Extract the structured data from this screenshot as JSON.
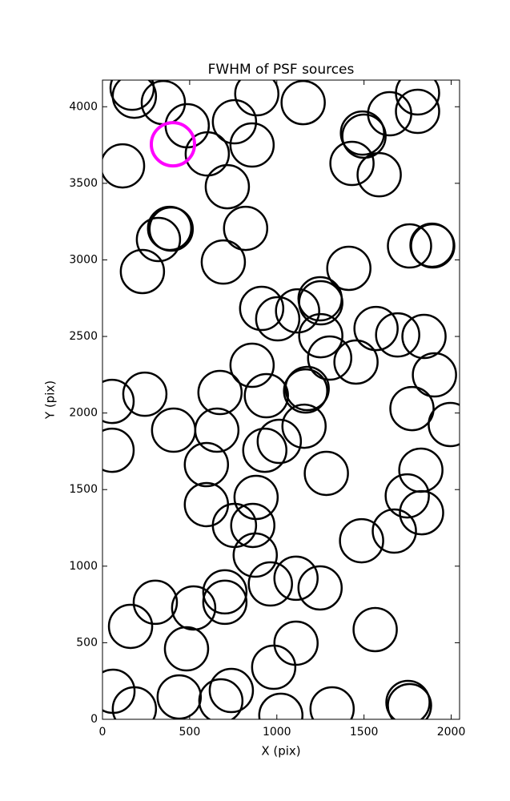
{
  "chart_data": {
    "type": "scatter",
    "title": "FWHM of PSF sources",
    "x_label": "X (pix)",
    "y_label": "Y (pix)",
    "xlim": [
      0,
      2048
    ],
    "ylim": [
      0,
      4174
    ],
    "xticks": [
      0,
      500,
      1000,
      1500,
      2000
    ],
    "yticks": [
      0,
      500,
      1000,
      1500,
      2000,
      2500,
      3000,
      3500,
      4000
    ],
    "series": [
      {
        "color": "#000000",
        "x": [
          170,
          183,
          349,
          486,
          115,
          601,
          757,
          858,
          885,
          716,
          1151,
          1491,
          1500,
          1431,
          1587,
          1647,
          1807,
          1807,
          394,
          385,
          321,
          821,
          693,
          229,
          1413,
          1761,
          1894,
          1890,
          913,
          1005,
          1119,
          1248,
          1252,
          1252,
          1303,
          1454,
          1569,
          1693,
          1844,
          1904,
          1775,
          1995,
          55,
          243,
          858,
          674,
          940,
          1165,
          1174,
          1156,
          656,
          408,
          55,
          1014,
          931,
          596,
          1284,
          1826,
          1748,
          1830,
          881,
          596,
          757,
          862,
          876,
          1486,
          1674,
          963,
          1110,
          1248,
          702,
          702,
          303,
          523,
          161,
          482,
          1110,
          1564,
          982,
          60,
          183,
          440,
          679,
          739,
          1023,
          1317,
          1752,
          1761
        ],
        "y": [
          4121,
          4069,
          4027,
          3876,
          3614,
          3692,
          3902,
          3750,
          4085,
          3478,
          4027,
          3828,
          3808,
          3630,
          3556,
          3954,
          4090,
          3970,
          3201,
          3206,
          3133,
          3206,
          2986,
          2924,
          2945,
          3091,
          3091,
          3096,
          2683,
          2615,
          2667,
          2746,
          2720,
          2505,
          2359,
          2333,
          2552,
          2510,
          2500,
          2249,
          2029,
          1925,
          2076,
          2123,
          2312,
          2134,
          2113,
          2144,
          2160,
          1914,
          1888,
          1888,
          1757,
          1815,
          1757,
          1663,
          1606,
          1627,
          1459,
          1349,
          1449,
          1402,
          1266,
          1266,
          1072,
          1166,
          1229,
          884,
          921,
          858,
          832,
          764,
          764,
          727,
          607,
          460,
          497,
          586,
          340,
          183,
          68,
          146,
          120,
          188,
          26,
          68,
          110,
          89
        ]
      },
      {
        "color": "#ff00ff",
        "x": [
          404
        ],
        "y": [
          3755
        ]
      }
    ]
  }
}
